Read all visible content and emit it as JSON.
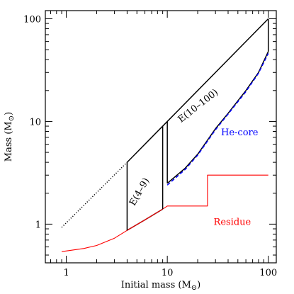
{
  "chart_data": {
    "type": "line",
    "xscale": "log",
    "yscale": "log",
    "xlim": [
      0.62,
      120
    ],
    "ylim": [
      0.42,
      120
    ],
    "grid": false,
    "xlabel": "Initial mass (M",
    "xlabel_sub": "⊙",
    "xlabel_tail": ")",
    "ylabel": "Mass (M",
    "ylabel_sub": "⊙",
    "ylabel_tail": ")",
    "x_ticks": [
      1,
      10,
      100
    ],
    "x_tick_labels": [
      "1",
      "10",
      "100"
    ],
    "y_ticks": [
      1,
      10,
      100
    ],
    "y_tick_labels": [
      "1",
      "10",
      "100"
    ],
    "colors": {
      "main": "#000000",
      "helium": "#0000ff",
      "residue": "#ff0000"
    },
    "series": [
      {
        "key": "extrap",
        "style": "dotted",
        "color": "#000000",
        "x": [
          0.9,
          4
        ],
        "y": [
          0.93,
          4.0
        ]
      },
      {
        "key": "upper",
        "style": "solid",
        "color": "#000000",
        "x": [
          4,
          9,
          10,
          100
        ],
        "y": [
          4.0,
          9.0,
          10.0,
          100.0
        ]
      },
      {
        "key": "lower-left",
        "style": "solid",
        "color": "#000000",
        "x": [
          4,
          6,
          9
        ],
        "y": [
          0.87,
          1.1,
          1.4
        ]
      },
      {
        "key": "lower-right",
        "style": "solid",
        "color": "#000000",
        "x": [
          10,
          15,
          20,
          30,
          40,
          60,
          80,
          100
        ],
        "y": [
          2.5,
          3.5,
          4.8,
          8.5,
          12,
          20,
          30,
          48
        ]
      },
      {
        "key": "he-core",
        "style": "dashed",
        "color": "#0000ff",
        "x": [
          10,
          15,
          20,
          30,
          40,
          60,
          80,
          100
        ],
        "y": [
          2.4,
          3.4,
          4.7,
          8.3,
          11.8,
          19.5,
          29.5,
          46
        ]
      },
      {
        "key": "residue",
        "style": "solid",
        "color": "#ff0000",
        "x": [
          0.9,
          1.5,
          2,
          3,
          4,
          6,
          9,
          9.8,
          10,
          15,
          25,
          25,
          50,
          100
        ],
        "y": [
          0.54,
          0.58,
          0.62,
          0.73,
          0.87,
          1.1,
          1.4,
          1.48,
          1.5,
          1.5,
          1.5,
          3.0,
          3.0,
          3.0
        ]
      }
    ],
    "vertical_segments": [
      {
        "x": 4,
        "y": [
          0.87,
          4.0
        ]
      },
      {
        "x": 9,
        "y": [
          1.4,
          9.0
        ]
      },
      {
        "x": 10,
        "y": [
          2.5,
          10.0
        ]
      },
      {
        "x": 100,
        "y": [
          48,
          100
        ]
      }
    ],
    "annotations": [
      {
        "text": "E(4–9)",
        "x": 5.6,
        "y": 2.0,
        "angle": -60,
        "color": "#000000"
      },
      {
        "text": "E(10–100)",
        "x": 21,
        "y": 13.5,
        "angle": -38,
        "color": "#000000"
      },
      {
        "text": "He-core",
        "x": 52,
        "y": 7.3,
        "angle": 0,
        "color": "#0000ff"
      },
      {
        "text": "Residue",
        "x": 44,
        "y": 0.98,
        "angle": 0,
        "color": "#ff0000"
      }
    ]
  }
}
